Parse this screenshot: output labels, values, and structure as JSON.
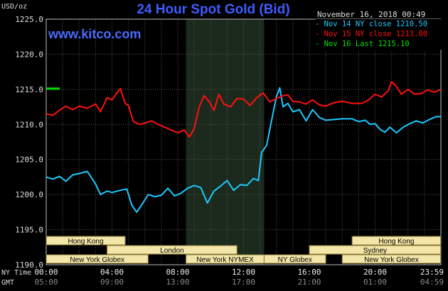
{
  "header": {
    "title": "24 Hour Spot Gold (Bid)",
    "site": "www.kitco.com",
    "unit": "USD/oz",
    "date": "November 16, 2018 00:49"
  },
  "chart_data": {
    "type": "line",
    "title": "24 Hour Spot Gold (Bid)",
    "ylabel": "USD/oz",
    "ylim": [
      1190,
      1225
    ],
    "y_ticks": [
      "1225.0",
      "1220.0",
      "1215.0",
      "1210.0",
      "1205.0",
      "1200.0",
      "1195.0",
      "1190.0"
    ],
    "x_ticks_ny": [
      "00:00",
      "04:00",
      "08:00",
      "12:00",
      "16:00",
      "20:00",
      "23:59"
    ],
    "x_ticks_gmt": [
      "05:00",
      "09:00",
      "13:00",
      "17:00",
      "21:00",
      "01:00",
      "04:59"
    ],
    "x_label_ny": "NY Time",
    "x_label_gmt": "GMT",
    "grid": true,
    "legend_position": "top-right",
    "highlight_hours": [
      8.5,
      13.25
    ],
    "series": [
      {
        "name": "Nov 14 NY close 1210.50",
        "color": "#1ec8ff",
        "points": [
          [
            0,
            1202.5
          ],
          [
            0.4,
            1202.2
          ],
          [
            0.8,
            1202.6
          ],
          [
            1.2,
            1201.9
          ],
          [
            1.6,
            1202.8
          ],
          [
            2.0,
            1203.0
          ],
          [
            2.5,
            1203.3
          ],
          [
            3.0,
            1201.5
          ],
          [
            3.3,
            1200.0
          ],
          [
            3.7,
            1200.5
          ],
          [
            4.0,
            1200.3
          ],
          [
            4.5,
            1200.6
          ],
          [
            4.9,
            1200.8
          ],
          [
            5.2,
            1198.5
          ],
          [
            5.5,
            1197.5
          ],
          [
            5.8,
            1198.5
          ],
          [
            6.2,
            1200.0
          ],
          [
            6.6,
            1199.7
          ],
          [
            7.0,
            1199.9
          ],
          [
            7.4,
            1200.9
          ],
          [
            7.8,
            1199.8
          ],
          [
            8.2,
            1200.2
          ],
          [
            8.6,
            1200.9
          ],
          [
            9.0,
            1201.3
          ],
          [
            9.4,
            1201.0
          ],
          [
            9.8,
            1198.8
          ],
          [
            10.2,
            1200.5
          ],
          [
            10.6,
            1201.2
          ],
          [
            11.0,
            1202.0
          ],
          [
            11.4,
            1200.6
          ],
          [
            11.8,
            1201.4
          ],
          [
            12.2,
            1201.3
          ],
          [
            12.6,
            1202.3
          ],
          [
            12.9,
            1202.0
          ],
          [
            13.1,
            1206.0
          ],
          [
            13.4,
            1207.0
          ],
          [
            13.7,
            1210.5
          ],
          [
            14.0,
            1214.0
          ],
          [
            14.2,
            1215.2
          ],
          [
            14.4,
            1212.5
          ],
          [
            14.7,
            1213.0
          ],
          [
            15.0,
            1211.8
          ],
          [
            15.4,
            1212.1
          ],
          [
            15.8,
            1210.5
          ],
          [
            16.2,
            1212.1
          ],
          [
            16.6,
            1211.0
          ],
          [
            17.0,
            1210.6
          ],
          [
            17.5,
            1210.7
          ],
          [
            18.0,
            1210.8
          ],
          [
            18.6,
            1210.8
          ],
          [
            19.0,
            1210.4
          ],
          [
            19.4,
            1210.6
          ],
          [
            19.7,
            1210.0
          ],
          [
            20.0,
            1210.1
          ],
          [
            20.3,
            1209.3
          ],
          [
            20.6,
            1208.9
          ],
          [
            20.9,
            1209.6
          ],
          [
            21.3,
            1208.8
          ],
          [
            21.7,
            1209.6
          ],
          [
            22.1,
            1210.1
          ],
          [
            22.5,
            1210.5
          ],
          [
            22.9,
            1210.2
          ],
          [
            23.3,
            1210.7
          ],
          [
            23.7,
            1211.1
          ],
          [
            23.99,
            1211.1
          ]
        ]
      },
      {
        "name": "Nov 15 NY close 1213.00",
        "color": "#ff1010",
        "points": [
          [
            0,
            1211.5
          ],
          [
            0.4,
            1211.3
          ],
          [
            0.8,
            1212.0
          ],
          [
            1.2,
            1212.6
          ],
          [
            1.6,
            1212.1
          ],
          [
            2.0,
            1212.6
          ],
          [
            2.5,
            1212.3
          ],
          [
            3.0,
            1212.9
          ],
          [
            3.3,
            1211.8
          ],
          [
            3.7,
            1213.8
          ],
          [
            4.0,
            1213.5
          ],
          [
            4.3,
            1214.5
          ],
          [
            4.5,
            1215.1
          ],
          [
            4.8,
            1213.0
          ],
          [
            5.0,
            1212.7
          ],
          [
            5.3,
            1210.4
          ],
          [
            5.7,
            1210.0
          ],
          [
            6.0,
            1210.2
          ],
          [
            6.4,
            1210.5
          ],
          [
            6.8,
            1210.0
          ],
          [
            7.2,
            1209.6
          ],
          [
            7.6,
            1209.2
          ],
          [
            8.0,
            1208.8
          ],
          [
            8.4,
            1209.2
          ],
          [
            8.7,
            1208.2
          ],
          [
            9.0,
            1209.4
          ],
          [
            9.3,
            1212.5
          ],
          [
            9.6,
            1214.1
          ],
          [
            9.9,
            1213.3
          ],
          [
            10.2,
            1212.0
          ],
          [
            10.5,
            1214.3
          ],
          [
            10.8,
            1212.9
          ],
          [
            11.2,
            1212.5
          ],
          [
            11.6,
            1213.7
          ],
          [
            12.0,
            1213.6
          ],
          [
            12.4,
            1212.7
          ],
          [
            12.8,
            1213.8
          ],
          [
            13.2,
            1214.5
          ],
          [
            13.6,
            1213.2
          ],
          [
            14.0,
            1213.7
          ],
          [
            14.4,
            1214.1
          ],
          [
            14.7,
            1214.2
          ],
          [
            15.0,
            1213.3
          ],
          [
            15.4,
            1213.2
          ],
          [
            15.8,
            1212.9
          ],
          [
            16.2,
            1213.5
          ],
          [
            16.6,
            1212.8
          ],
          [
            17.0,
            1212.6
          ],
          [
            17.5,
            1213.1
          ],
          [
            18.0,
            1213.3
          ],
          [
            18.6,
            1213.0
          ],
          [
            19.2,
            1213.0
          ],
          [
            19.6,
            1213.5
          ],
          [
            20.0,
            1214.3
          ],
          [
            20.4,
            1213.9
          ],
          [
            20.8,
            1214.8
          ],
          [
            21.0,
            1216.1
          ],
          [
            21.3,
            1215.4
          ],
          [
            21.6,
            1214.3
          ],
          [
            22.0,
            1215.0
          ],
          [
            22.4,
            1214.3
          ],
          [
            22.8,
            1214.4
          ],
          [
            23.2,
            1214.9
          ],
          [
            23.6,
            1214.6
          ],
          [
            23.99,
            1215.0
          ]
        ]
      },
      {
        "name": "Nov 16 Last 1215.10",
        "color": "#00e000",
        "points": [
          [
            0,
            1215.1
          ],
          [
            0.82,
            1215.1
          ]
        ]
      }
    ],
    "sessions": [
      {
        "name": "Hong Kong",
        "start": 0,
        "end": 4.8,
        "row": 0
      },
      {
        "name": "London",
        "start": 3.7,
        "end": 11.6,
        "row": 1
      },
      {
        "name": "New York Globex",
        "start": 0,
        "end": 6.2,
        "row": 2
      },
      {
        "name": "New York NYMEX",
        "start": 8.5,
        "end": 13.25,
        "row": 2
      },
      {
        "name": "NY Globex",
        "start": 13.25,
        "end": 17.0,
        "row": 2
      },
      {
        "name": "Hong Kong",
        "start": 18.6,
        "end": 23.99,
        "row": 0
      },
      {
        "name": "Sydney",
        "start": 16.0,
        "end": 23.99,
        "row": 1
      },
      {
        "name": "New York Globex",
        "start": 18.0,
        "end": 23.99,
        "row": 2
      }
    ]
  }
}
